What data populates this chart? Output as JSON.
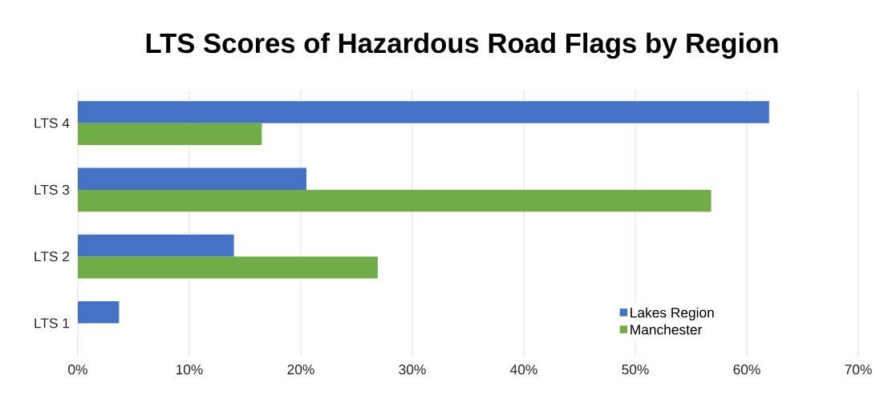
{
  "chart_data": {
    "type": "bar",
    "orientation": "horizontal",
    "title": "LTS Scores of Hazardous Road Flags by Region",
    "categories": [
      "LTS 4",
      "LTS 3",
      "LTS 2",
      "LTS 1"
    ],
    "series": [
      {
        "name": "Lakes Region",
        "color": "#4472c4",
        "values": [
          62,
          20.5,
          14,
          3.7
        ]
      },
      {
        "name": "Manchester",
        "color": "#70ad47",
        "values": [
          16.5,
          56.8,
          26.9,
          0
        ]
      }
    ],
    "xlim": [
      0,
      70
    ],
    "xticks": [
      {
        "value": 0,
        "label": "0%"
      },
      {
        "value": 10,
        "label": "10%"
      },
      {
        "value": 20,
        "label": "20%"
      },
      {
        "value": 30,
        "label": "30%"
      },
      {
        "value": 40,
        "label": "40%"
      },
      {
        "value": 50,
        "label": "50%"
      },
      {
        "value": 60,
        "label": "60%"
      },
      {
        "value": 70,
        "label": "70%"
      }
    ],
    "grid": "x",
    "legend": "bottom right"
  }
}
